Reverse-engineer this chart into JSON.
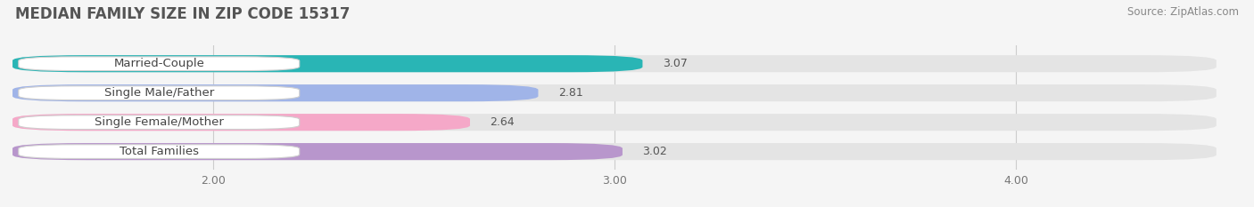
{
  "title": "MEDIAN FAMILY SIZE IN ZIP CODE 15317",
  "source": "Source: ZipAtlas.com",
  "categories": [
    "Married-Couple",
    "Single Male/Father",
    "Single Female/Mother",
    "Total Families"
  ],
  "values": [
    3.07,
    2.81,
    2.64,
    3.02
  ],
  "bar_colors": [
    "#29b5b5",
    "#a0b4e8",
    "#f5a8c8",
    "#b896cc"
  ],
  "background_color": "#f5f5f5",
  "bar_bg_color": "#e4e4e4",
  "xlim_min": 1.5,
  "xlim_max": 4.5,
  "xticks": [
    2.0,
    3.0,
    4.0
  ],
  "xtick_labels": [
    "2.00",
    "3.00",
    "4.00"
  ],
  "bar_height": 0.58,
  "label_fontsize": 9.5,
  "title_fontsize": 12,
  "source_fontsize": 8.5,
  "value_fontsize": 9
}
